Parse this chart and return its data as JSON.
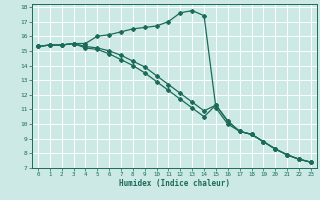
{
  "title": "",
  "xlabel": "Humidex (Indice chaleur)",
  "bg_color": "#cce9e5",
  "grid_color": "#ffffff",
  "line_color": "#1a6b5a",
  "xlim": [
    -0.5,
    23.5
  ],
  "ylim": [
    7,
    18.2
  ],
  "xticks": [
    0,
    1,
    2,
    3,
    4,
    5,
    6,
    7,
    8,
    9,
    10,
    11,
    12,
    13,
    14,
    15,
    16,
    17,
    18,
    19,
    20,
    21,
    22,
    23
  ],
  "yticks": [
    7,
    8,
    9,
    10,
    11,
    12,
    13,
    14,
    15,
    16,
    17,
    18
  ],
  "series1_x": [
    0,
    1,
    2,
    3,
    4,
    5,
    6,
    7,
    8,
    9,
    10,
    11,
    12,
    13,
    14,
    15,
    16,
    17,
    18,
    19,
    20,
    21,
    22,
    23
  ],
  "series1_y": [
    15.3,
    15.4,
    15.4,
    15.5,
    15.5,
    16.0,
    16.1,
    16.3,
    16.5,
    16.6,
    16.7,
    17.0,
    17.6,
    17.75,
    17.4,
    11.1,
    10.0,
    9.5,
    9.3,
    8.8,
    8.3,
    7.9,
    7.6,
    7.4
  ],
  "series2_x": [
    0,
    1,
    2,
    3,
    4,
    5,
    6,
    7,
    8,
    9,
    10,
    11,
    12,
    13,
    14,
    15,
    16,
    17,
    18,
    19,
    20,
    21,
    22,
    23
  ],
  "series2_y": [
    15.3,
    15.4,
    15.4,
    15.5,
    15.2,
    15.1,
    14.8,
    14.4,
    14.0,
    13.5,
    12.9,
    12.3,
    11.7,
    11.1,
    10.5,
    11.3,
    10.2,
    9.5,
    9.3,
    8.8,
    8.3,
    7.9,
    7.6,
    7.4
  ],
  "series3_x": [
    0,
    1,
    2,
    3,
    4,
    5,
    6,
    7,
    8,
    9,
    10,
    11,
    12,
    13,
    14,
    15,
    16,
    17,
    18,
    19,
    20,
    21,
    22,
    23
  ],
  "series3_y": [
    15.3,
    15.4,
    15.4,
    15.5,
    15.3,
    15.2,
    15.0,
    14.7,
    14.3,
    13.9,
    13.3,
    12.7,
    12.1,
    11.5,
    10.9,
    11.3,
    10.2,
    9.5,
    9.3,
    8.8,
    8.3,
    7.9,
    7.6,
    7.4
  ]
}
